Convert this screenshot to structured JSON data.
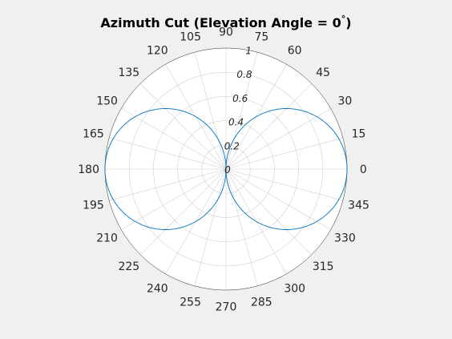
{
  "title": "Azimuth Cut (Elevation Angle = 0",
  "title_degree": "°",
  "title_close": ")",
  "chart_data": {
    "type": "line",
    "polar": true,
    "title": "Azimuth Cut (Elevation Angle = 0°)",
    "theta_unit": "degrees",
    "theta_ticks": [
      0,
      15,
      30,
      45,
      60,
      75,
      90,
      105,
      120,
      135,
      150,
      165,
      180,
      195,
      210,
      225,
      240,
      255,
      270,
      285,
      300,
      315,
      330,
      345
    ],
    "theta_tick_labels": [
      "0",
      "15",
      "30",
      "45",
      "60",
      "75",
      "90",
      "105",
      "120",
      "135",
      "150",
      "165",
      "180",
      "195",
      "210",
      "225",
      "240",
      "255",
      "270",
      "285",
      "300",
      "315",
      "330",
      "345"
    ],
    "r_ticks": [
      0,
      0.2,
      0.4,
      0.6,
      0.8,
      1
    ],
    "r_tick_labels": [
      "0",
      "0.2",
      "0.4",
      "0.6",
      "0.8",
      "1"
    ],
    "r_lim": [
      0,
      1
    ],
    "r_axis_angle_deg": 80,
    "grid": true,
    "series": [
      {
        "pattern": "abs(cos(theta))",
        "color": "#0072bd"
      }
    ]
  },
  "colors": {
    "background": "#f0f0f0",
    "axes": "#ffffff",
    "grid": "#d0d0d0",
    "line": "#0072bd"
  }
}
